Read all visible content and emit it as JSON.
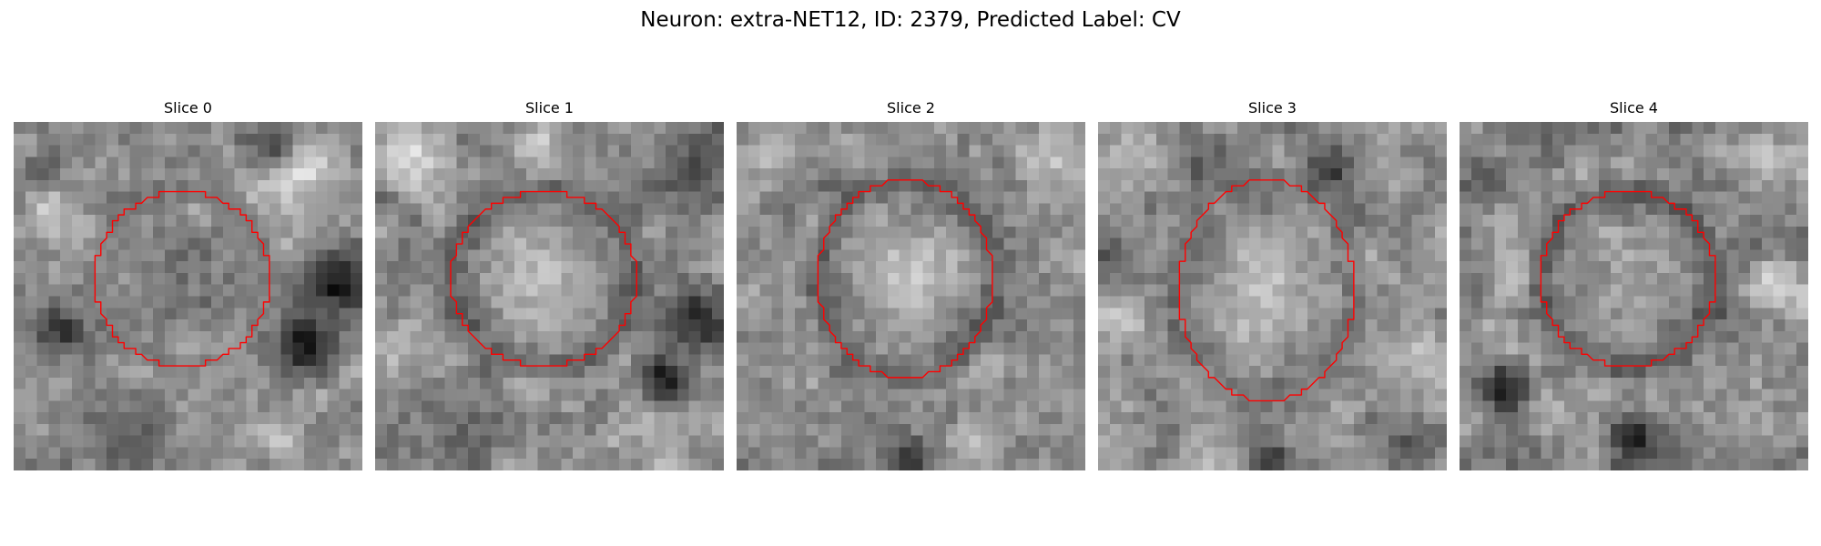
{
  "title": "Neuron: extra-NET12, ID: 2379, Predicted Label: CV",
  "contour_color": "#ff0000",
  "colormap": "gray",
  "panels": [
    {
      "label": "Slice 0",
      "seed": 11,
      "center_brightness": 0.4,
      "ring_brightness": 0.45,
      "features": [
        {
          "cx": 24,
          "cy": 4,
          "r": 5,
          "v": 0.88
        },
        {
          "cx": 22,
          "cy": 2,
          "r": 3,
          "v": 0.25
        },
        {
          "cx": 28,
          "cy": 14,
          "r": 4,
          "v": 0.08
        },
        {
          "cx": 25,
          "cy": 19,
          "r": 4,
          "v": 0.12
        },
        {
          "cx": 4,
          "cy": 18,
          "r": 4,
          "v": 0.22
        },
        {
          "cx": 3,
          "cy": 8,
          "r": 3,
          "v": 0.8
        },
        {
          "cx": 10,
          "cy": 27,
          "r": 5,
          "v": 0.35
        },
        {
          "cx": 23,
          "cy": 27,
          "r": 3,
          "v": 0.75
        }
      ]
    },
    {
      "label": "Slice 1",
      "seed": 23,
      "center_brightness": 0.8,
      "ring_brightness": 0.3,
      "features": [
        {
          "cx": 3,
          "cy": 3,
          "r": 4,
          "v": 0.85
        },
        {
          "cx": 27,
          "cy": 4,
          "r": 4,
          "v": 0.3
        },
        {
          "cx": 28,
          "cy": 17,
          "r": 4,
          "v": 0.15
        },
        {
          "cx": 25,
          "cy": 22,
          "r": 3,
          "v": 0.1
        },
        {
          "cx": 8,
          "cy": 27,
          "r": 5,
          "v": 0.4
        },
        {
          "cx": 2,
          "cy": 20,
          "r": 3,
          "v": 0.7
        },
        {
          "cx": 14,
          "cy": 2,
          "r": 3,
          "v": 0.78
        }
      ]
    },
    {
      "label": "Slice 2",
      "seed": 37,
      "center_brightness": 0.85,
      "ring_brightness": 0.28,
      "features": [
        {
          "cx": 3,
          "cy": 3,
          "r": 4,
          "v": 0.7
        },
        {
          "cx": 27,
          "cy": 3,
          "r": 4,
          "v": 0.75
        },
        {
          "cx": 15,
          "cy": 29,
          "r": 3,
          "v": 0.18
        },
        {
          "cx": 2,
          "cy": 27,
          "r": 3,
          "v": 0.55
        },
        {
          "cx": 28,
          "cy": 27,
          "r": 3,
          "v": 0.55
        },
        {
          "cx": 28,
          "cy": 17,
          "r": 3,
          "v": 0.6
        }
      ]
    },
    {
      "label": "Slice 3",
      "seed": 51,
      "center_brightness": 0.85,
      "ring_brightness": 0.4,
      "features": [
        {
          "cx": 3,
          "cy": 3,
          "r": 4,
          "v": 0.75
        },
        {
          "cx": 20,
          "cy": 4,
          "r": 3,
          "v": 0.2
        },
        {
          "cx": 9,
          "cy": 4,
          "r": 3,
          "v": 0.35
        },
        {
          "cx": 2,
          "cy": 17,
          "r": 3,
          "v": 0.8
        },
        {
          "cx": 28,
          "cy": 20,
          "r": 3,
          "v": 0.78
        },
        {
          "cx": 15,
          "cy": 29,
          "r": 3,
          "v": 0.25
        },
        {
          "cx": 27,
          "cy": 28,
          "r": 3,
          "v": 0.3
        }
      ]
    },
    {
      "label": "Slice 4",
      "seed": 67,
      "center_brightness": 0.72,
      "ring_brightness": 0.25,
      "features": [
        {
          "cx": 4,
          "cy": 23,
          "r": 3,
          "v": 0.1
        },
        {
          "cx": 15,
          "cy": 27,
          "r": 3,
          "v": 0.08
        },
        {
          "cx": 2,
          "cy": 5,
          "r": 3,
          "v": 0.35
        },
        {
          "cx": 26,
          "cy": 3,
          "r": 3,
          "v": 0.8
        },
        {
          "cx": 27,
          "cy": 14,
          "r": 3,
          "v": 0.85
        },
        {
          "cx": 25,
          "cy": 25,
          "r": 3,
          "v": 0.6
        },
        {
          "cx": 5,
          "cy": 13,
          "r": 3,
          "v": 0.82
        }
      ]
    }
  ]
}
